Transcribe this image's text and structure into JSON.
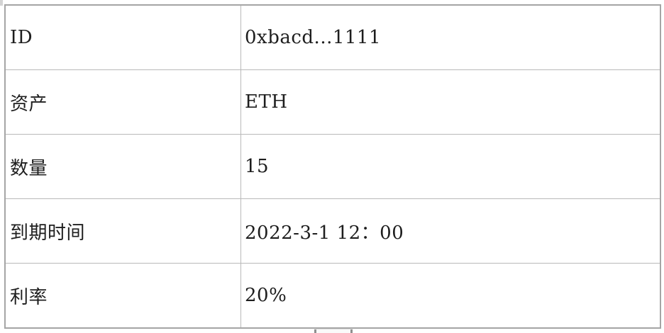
{
  "table": {
    "rows": [
      {
        "key": "id",
        "label": "ID",
        "value": "0xbacd...1111"
      },
      {
        "key": "asset",
        "label": "资产",
        "value": "ETH"
      },
      {
        "key": "quantity",
        "label": "数量",
        "value": "15"
      },
      {
        "key": "expiry",
        "label": "到期时间",
        "value": "2022-3-1 12：00"
      },
      {
        "key": "rate",
        "label": "利率",
        "value": "20%"
      }
    ]
  },
  "chart_data": {
    "type": "table",
    "columns": [
      "label",
      "value"
    ],
    "rows": [
      [
        "ID",
        "0xbacd...1111"
      ],
      [
        "资产",
        "ETH"
      ],
      [
        "数量",
        "15"
      ],
      [
        "到期时间",
        "2022-3-1 12：00"
      ],
      [
        "利率",
        "20%"
      ]
    ]
  },
  "colors": {
    "background": "#ffffff",
    "border_outer": "#a5a5a5",
    "border_inner": "#b9b9b9",
    "text": "#1e1e1e",
    "handle_cap": "#8f8f8f"
  }
}
